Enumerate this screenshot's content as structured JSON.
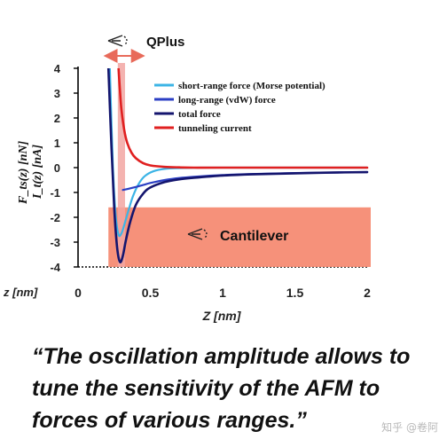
{
  "quote": "“The oscillation amplitude allows to tune the sensitivity of the AFM to forces of various ranges.”",
  "watermark": "知乎 @卷阿",
  "chart_data": {
    "type": "line",
    "ylabel_top": "F_ts(z) [nN]",
    "ylabel_bottom": "I_t(z) [nA]",
    "xlabel": "Z [nm]",
    "xlabel_left": "z [nm]",
    "xlim": [
      0,
      2
    ],
    "ylim": [
      -4,
      4
    ],
    "xticks": [
      "0",
      "0.5",
      "1",
      "1.5",
      "2"
    ],
    "yticks": [
      "4",
      "3",
      "2",
      "1",
      "0",
      "-1",
      "-2",
      "-3",
      "-4"
    ],
    "grid": false,
    "legend_position": "top-right",
    "series": [
      {
        "name": "short-range force (Morse potential)",
        "color": "#3cb4e6",
        "x": [
          0.22,
          0.24,
          0.26,
          0.28,
          0.3,
          0.32,
          0.35,
          0.38,
          0.42,
          0.46,
          0.52,
          0.6,
          0.7,
          0.85,
          1.0,
          1.5,
          2.0
        ],
        "y": [
          4.0,
          0.2,
          -1.9,
          -2.7,
          -2.65,
          -2.3,
          -1.7,
          -1.15,
          -0.65,
          -0.35,
          -0.15,
          -0.05,
          -0.02,
          0.0,
          0.0,
          0.0,
          0.0
        ]
      },
      {
        "name": "long-range (vdW) force",
        "color": "#2b3fc4",
        "x": [
          0.31,
          0.35,
          0.4,
          0.45,
          0.5,
          0.6,
          0.7,
          0.8,
          1.0,
          1.2,
          1.5,
          1.75,
          2.0
        ],
        "y": [
          -0.9,
          -0.85,
          -0.78,
          -0.7,
          -0.62,
          -0.5,
          -0.42,
          -0.37,
          -0.3,
          -0.26,
          -0.22,
          -0.2,
          -0.18
        ]
      },
      {
        "name": "total force",
        "color": "#14156e",
        "x": [
          0.21,
          0.23,
          0.25,
          0.27,
          0.29,
          0.31,
          0.33,
          0.36,
          0.4,
          0.45,
          0.5,
          0.6,
          0.7,
          0.8,
          1.0,
          1.2,
          1.5,
          1.75,
          2.0
        ],
        "y": [
          4.0,
          1.0,
          -1.6,
          -3.2,
          -3.8,
          -3.55,
          -2.95,
          -2.2,
          -1.5,
          -1.05,
          -0.8,
          -0.58,
          -0.47,
          -0.41,
          -0.32,
          -0.27,
          -0.23,
          -0.2,
          -0.18
        ]
      },
      {
        "name": "tunneling current",
        "color": "#e02020",
        "x": [
          0.28,
          0.29,
          0.3,
          0.32,
          0.34,
          0.37,
          0.4,
          0.45,
          0.5,
          0.6,
          0.7,
          0.8,
          1.0,
          1.5,
          2.0
        ],
        "y": [
          4.0,
          3.1,
          2.35,
          1.5,
          1.0,
          0.6,
          0.38,
          0.18,
          0.09,
          0.03,
          0.01,
          0.0,
          0.0,
          0.0,
          0.0
        ]
      }
    ],
    "annotations": [
      {
        "label": "QPlus",
        "x_range": [
          0.24,
          0.36
        ],
        "y_range": [
          -4,
          4
        ]
      },
      {
        "label": "Cantilever",
        "x_range": [
          0.21,
          2.0
        ],
        "y_range": [
          -4,
          -1.6
        ]
      }
    ]
  }
}
